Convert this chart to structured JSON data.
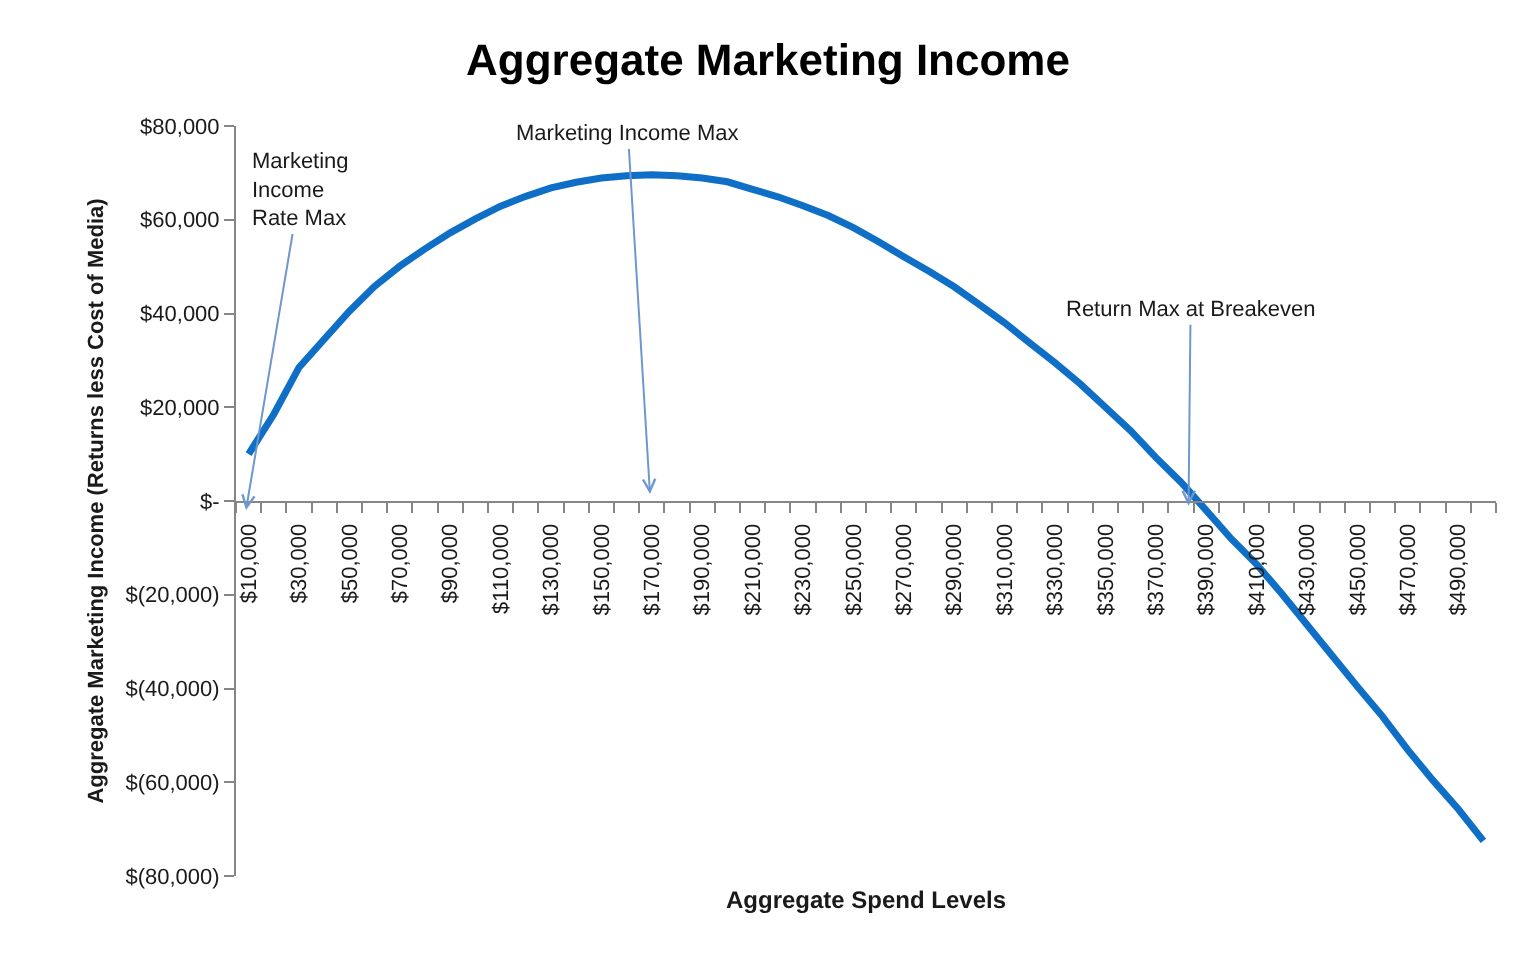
{
  "chart_data": {
    "type": "line",
    "title": "Aggregate Marketing Income",
    "xlabel": "Aggregate Spend Levels",
    "ylabel": "Aggregate Marketing Income (Returns less Cost of Media)",
    "x": [
      10000,
      20000,
      30000,
      40000,
      50000,
      60000,
      70000,
      80000,
      90000,
      100000,
      110000,
      120000,
      130000,
      140000,
      150000,
      160000,
      170000,
      180000,
      190000,
      200000,
      210000,
      220000,
      230000,
      240000,
      250000,
      260000,
      270000,
      280000,
      290000,
      300000,
      310000,
      320000,
      330000,
      340000,
      350000,
      360000,
      370000,
      380000,
      390000,
      400000,
      410000,
      420000,
      430000,
      440000,
      450000,
      460000,
      470000,
      480000,
      490000,
      500000
    ],
    "series": [
      {
        "color": "#0f6fc6",
        "values": [
          10000,
          18500,
          28500,
          34500,
          40500,
          45800,
          50100,
          53800,
          57200,
          60200,
          62900,
          65000,
          66800,
          68000,
          68900,
          69400,
          69600,
          69400,
          68900,
          68100,
          66500,
          64900,
          63000,
          60900,
          58300,
          55300,
          52100,
          49000,
          45700,
          41900,
          38000,
          33700,
          29500,
          25000,
          20000,
          15000,
          9300,
          4000,
          -2000,
          -8100,
          -13500,
          -19800,
          -26400,
          -33000,
          -39600,
          -46000,
          -53100,
          -59600,
          -65700,
          -72500
        ]
      }
    ],
    "xlim": [
      5000,
      505000
    ],
    "xticks": [
      {
        "value": 5000,
        "label": null
      },
      {
        "value": 10000,
        "label": "$10,000"
      },
      {
        "value": 15000,
        "label": null
      },
      {
        "value": 25000,
        "label": null
      },
      {
        "value": 30000,
        "label": "$30,000"
      },
      {
        "value": 35000,
        "label": null
      },
      {
        "value": 45000,
        "label": null
      },
      {
        "value": 50000,
        "label": "$50,000"
      },
      {
        "value": 55000,
        "label": null
      },
      {
        "value": 65000,
        "label": null
      },
      {
        "value": 70000,
        "label": "$70,000"
      },
      {
        "value": 75000,
        "label": null
      },
      {
        "value": 85000,
        "label": null
      },
      {
        "value": 90000,
        "label": "$90,000"
      },
      {
        "value": 95000,
        "label": null
      },
      {
        "value": 105000,
        "label": null
      },
      {
        "value": 110000,
        "label": "$110,000"
      },
      {
        "value": 115000,
        "label": null
      },
      {
        "value": 125000,
        "label": null
      },
      {
        "value": 130000,
        "label": "$130,000"
      },
      {
        "value": 135000,
        "label": null
      },
      {
        "value": 145000,
        "label": null
      },
      {
        "value": 150000,
        "label": "$150,000"
      },
      {
        "value": 155000,
        "label": null
      },
      {
        "value": 165000,
        "label": null
      },
      {
        "value": 170000,
        "label": "$170,000"
      },
      {
        "value": 175000,
        "label": null
      },
      {
        "value": 185000,
        "label": null
      },
      {
        "value": 190000,
        "label": "$190,000"
      },
      {
        "value": 195000,
        "label": null
      },
      {
        "value": 205000,
        "label": null
      },
      {
        "value": 210000,
        "label": "$210,000"
      },
      {
        "value": 215000,
        "label": null
      },
      {
        "value": 225000,
        "label": null
      },
      {
        "value": 230000,
        "label": "$230,000"
      },
      {
        "value": 235000,
        "label": null
      },
      {
        "value": 245000,
        "label": null
      },
      {
        "value": 250000,
        "label": "$250,000"
      },
      {
        "value": 255000,
        "label": null
      },
      {
        "value": 265000,
        "label": null
      },
      {
        "value": 270000,
        "label": "$270,000"
      },
      {
        "value": 275000,
        "label": null
      },
      {
        "value": 285000,
        "label": null
      },
      {
        "value": 290000,
        "label": "$290,000"
      },
      {
        "value": 295000,
        "label": null
      },
      {
        "value": 305000,
        "label": null
      },
      {
        "value": 310000,
        "label": "$310,000"
      },
      {
        "value": 315000,
        "label": null
      },
      {
        "value": 325000,
        "label": null
      },
      {
        "value": 330000,
        "label": "$330,000"
      },
      {
        "value": 335000,
        "label": null
      },
      {
        "value": 345000,
        "label": null
      },
      {
        "value": 350000,
        "label": "$350,000"
      },
      {
        "value": 355000,
        "label": null
      },
      {
        "value": 365000,
        "label": null
      },
      {
        "value": 370000,
        "label": "$370,000"
      },
      {
        "value": 375000,
        "label": null
      },
      {
        "value": 385000,
        "label": null
      },
      {
        "value": 390000,
        "label": "$390,000"
      },
      {
        "value": 395000,
        "label": null
      },
      {
        "value": 405000,
        "label": null
      },
      {
        "value": 410000,
        "label": "$410,000"
      },
      {
        "value": 415000,
        "label": null
      },
      {
        "value": 425000,
        "label": null
      },
      {
        "value": 430000,
        "label": "$430,000"
      },
      {
        "value": 435000,
        "label": null
      },
      {
        "value": 445000,
        "label": null
      },
      {
        "value": 450000,
        "label": "$450,000"
      },
      {
        "value": 455000,
        "label": null
      },
      {
        "value": 465000,
        "label": null
      },
      {
        "value": 470000,
        "label": "$470,000"
      },
      {
        "value": 475000,
        "label": null
      },
      {
        "value": 485000,
        "label": null
      },
      {
        "value": 490000,
        "label": "$490,000"
      },
      {
        "value": 495000,
        "label": null
      },
      {
        "value": 505000,
        "label": null
      }
    ],
    "ylim": [
      -80000,
      80000
    ],
    "yticks": [
      {
        "value": 80000,
        "label": "$80,000"
      },
      {
        "value": 60000,
        "label": "$60,000"
      },
      {
        "value": 40000,
        "label": "$40,000"
      },
      {
        "value": 20000,
        "label": "$20,000"
      },
      {
        "value": 0,
        "label": "$-"
      },
      {
        "value": -20000,
        "label": "$(20,000)"
      },
      {
        "value": -40000,
        "label": "$(40,000)"
      },
      {
        "value": -60000,
        "label": "$(60,000)"
      },
      {
        "value": -80000,
        "label": "$(80,000)"
      }
    ],
    "annotations": [
      "Marketing\nIncome\nRate Max",
      "Marketing Income Max",
      {
        "text": "Return Max at Breakeven",
        "x": 383000,
        "y": -1000
      }
    ],
    "grid": false,
    "marker": "none",
    "line_style": "solid"
  }
}
